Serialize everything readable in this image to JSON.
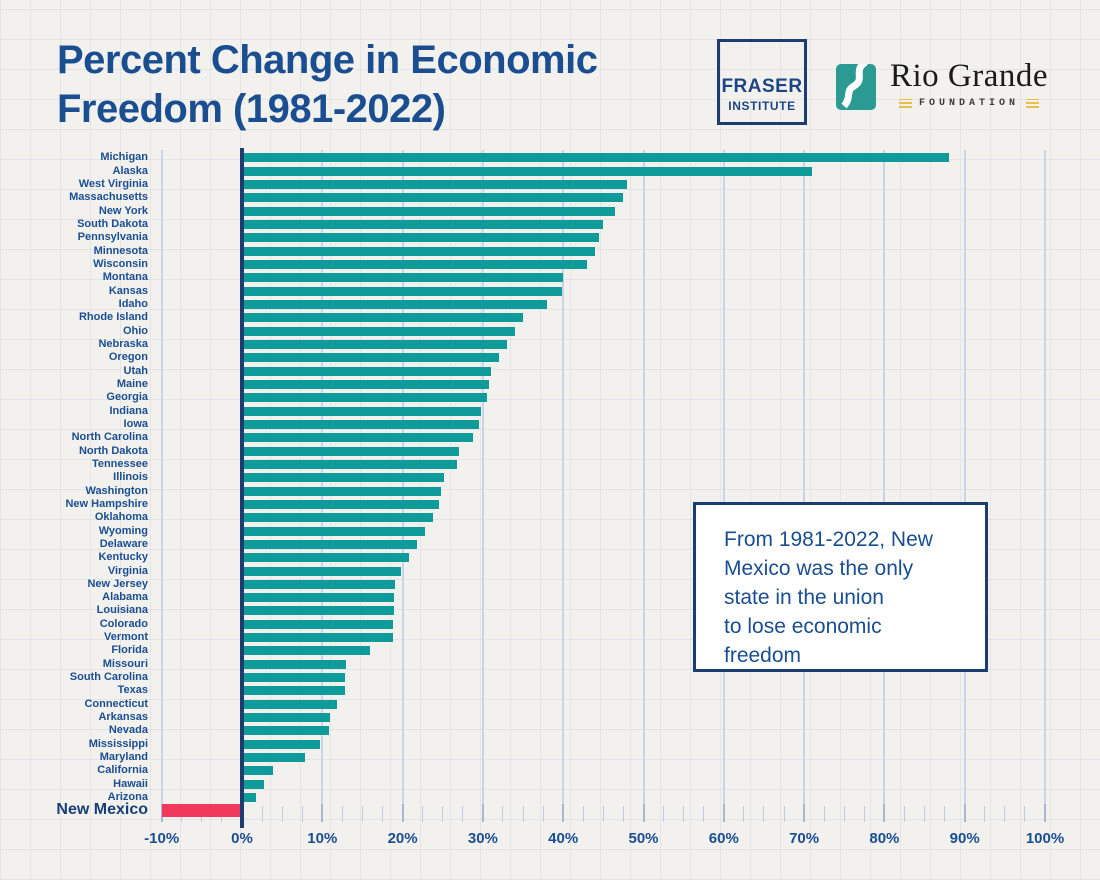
{
  "header": {
    "title": "Percent Change in Economic\nFreedom (1981-2022)",
    "fraser_logo": {
      "line1": "FRASER",
      "line2": "INSTITUTE"
    },
    "rio_grande_logo": {
      "name": "Rio Grande",
      "subtitle": "FOUNDATION"
    }
  },
  "callout": {
    "text": "From 1981-2022, New\nMexico was the only\nstate in the union\nto lose economic\nfreedom"
  },
  "colors": {
    "bar_teal": "#0f9b9a",
    "bar_red": "#f0395d",
    "navy_text": "#1a4e91",
    "axis_navy": "#1c3d72",
    "gridline_blue": "#ccd3e8",
    "rgf_teal": "#2b9a93",
    "rgf_gold": "#e8c045",
    "background": "#f2f1ee"
  },
  "chart_data": {
    "type": "bar",
    "orientation": "horizontal",
    "title": "Percent Change in Economic Freedom (1981-2022)",
    "xlabel": "",
    "ylabel": "",
    "xlim": [
      -10,
      100
    ],
    "grid": "vertical-major",
    "legend": "none",
    "x_tick_values": [
      -10,
      0,
      10,
      20,
      30,
      40,
      50,
      60,
      70,
      80,
      90,
      100
    ],
    "x_tick_labels": [
      "-10%",
      "0%",
      "10%",
      "20%",
      "30%",
      "40%",
      "50%",
      "60%",
      "70%",
      "80%",
      "90%",
      "100%"
    ],
    "minor_tick_step": 2.5,
    "categories": [
      "Michigan",
      "Alaska",
      "West Virginia",
      "Massachusetts",
      "New York",
      "South Dakota",
      "Pennsylvania",
      "Minnesota",
      "Wisconsin",
      "Montana",
      "Kansas",
      "Idaho",
      "Rhode Island",
      "Ohio",
      "Nebraska",
      "Oregon",
      "Utah",
      "Maine",
      "Georgia",
      "Indiana",
      "Iowa",
      "North Carolina",
      "North Dakota",
      "Tennessee",
      "Illinois",
      "Washington",
      "New Hampshire",
      "Oklahoma",
      "Wyoming",
      "Delaware",
      "Kentucky",
      "Virginia",
      "New Jersey",
      "Alabama",
      "Louisiana",
      "Colorado",
      "Vermont",
      "Florida",
      "Missouri",
      "South Carolina",
      "Texas",
      "Connecticut",
      "Arkansas",
      "Nevada",
      "Mississippi",
      "Maryland",
      "California",
      "Hawaii",
      "Arizona",
      "New Mexico"
    ],
    "values": [
      88,
      71,
      48,
      47.5,
      46.5,
      45,
      44.5,
      44,
      43,
      40,
      39.8,
      38,
      35,
      34,
      33,
      32,
      31,
      30.8,
      30.5,
      29.8,
      29.5,
      28.8,
      27,
      26.8,
      25.2,
      24.8,
      24.5,
      23.8,
      22.8,
      21.8,
      20.8,
      19.8,
      19,
      18.9,
      18.9,
      18.8,
      18.8,
      15.9,
      12.9,
      12.8,
      12.8,
      11.8,
      10.9,
      10.8,
      9.7,
      7.8,
      3.8,
      2.8,
      1.7,
      -10
    ],
    "highlight_category": "New Mexico",
    "bar_color_default": "#0f9b9a",
    "bar_color_highlight": "#f0395d"
  }
}
